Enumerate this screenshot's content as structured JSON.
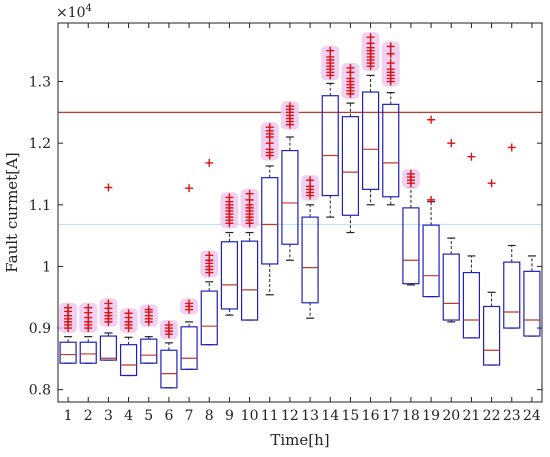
{
  "chart_data": {
    "type": "box",
    "title": "",
    "xlabel": "Time[h]",
    "ylabel": "Fault curmet[A]",
    "y_exponent_label": "×10",
    "y_exponent_power": "4",
    "xlim": [
      0.5,
      24.5
    ],
    "ylim": [
      0.78,
      1.395
    ],
    "yticks": [
      0.8,
      0.9,
      1.0,
      1.1,
      1.2,
      1.3
    ],
    "ytick_labels": [
      "0.8",
      "0.9",
      "1",
      "1.1",
      "1.2",
      "1.3"
    ],
    "categories": [
      "1",
      "2",
      "3",
      "4",
      "5",
      "6",
      "7",
      "8",
      "9",
      "10",
      "11",
      "12",
      "13",
      "14",
      "15",
      "16",
      "17",
      "18",
      "19",
      "20",
      "21",
      "22",
      "23",
      "24"
    ],
    "reference_lines": [
      {
        "y": 1.25,
        "color": "#c0392b"
      },
      {
        "y": 1.068,
        "color": "#bfe3ef"
      }
    ],
    "colors": {
      "box": "#1f1fbf",
      "median": "#c0392b",
      "whisker": "#222222",
      "outlier": "#e01010",
      "glow": "#f0c8ee"
    },
    "boxes": [
      {
        "whisker_low": 0.843,
        "q1": 0.843,
        "median": 0.857,
        "q3": 0.877,
        "whisker_high": 0.886,
        "outliers": [
          0.9,
          0.905,
          0.91,
          0.915,
          0.92,
          0.927,
          0.933
        ]
      },
      {
        "whisker_low": 0.843,
        "q1": 0.843,
        "median": 0.858,
        "q3": 0.877,
        "whisker_high": 0.886,
        "outliers": [
          0.9,
          0.905,
          0.91,
          0.917,
          0.925,
          0.933
        ]
      },
      {
        "whisker_low": 0.848,
        "q1": 0.848,
        "median": 0.851,
        "q3": 0.887,
        "whisker_high": 0.892,
        "outliers": [
          0.91,
          0.915,
          0.92,
          0.925,
          0.932,
          0.94,
          1.128
        ]
      },
      {
        "whisker_low": 0.823,
        "q1": 0.823,
        "median": 0.84,
        "q3": 0.873,
        "whisker_high": 0.885,
        "outliers": [
          0.9,
          0.905,
          0.91,
          0.917,
          0.924
        ]
      },
      {
        "whisker_low": 0.843,
        "q1": 0.843,
        "median": 0.856,
        "q3": 0.882,
        "whisker_high": 0.886,
        "outliers": [
          0.91,
          0.915,
          0.92,
          0.926,
          0.93
        ]
      },
      {
        "whisker_low": 0.803,
        "q1": 0.803,
        "median": 0.826,
        "q3": 0.864,
        "whisker_high": 0.876,
        "outliers": [
          0.89,
          0.895,
          0.9,
          0.905
        ]
      },
      {
        "whisker_low": 0.833,
        "q1": 0.833,
        "median": 0.851,
        "q3": 0.902,
        "whisker_high": 0.91,
        "outliers": [
          0.93,
          0.935,
          0.94,
          1.127
        ]
      },
      {
        "whisker_low": 0.873,
        "q1": 0.873,
        "median": 0.903,
        "q3": 0.96,
        "whisker_high": 0.975,
        "outliers": [
          0.99,
          0.995,
          1.0,
          1.005,
          1.01,
          1.018,
          1.168
        ]
      },
      {
        "whisker_low": 0.921,
        "q1": 0.931,
        "median": 0.97,
        "q3": 1.04,
        "whisker_high": 1.055,
        "outliers": [
          1.07,
          1.075,
          1.08,
          1.085,
          1.09,
          1.095,
          1.1,
          1.105,
          1.112
        ]
      },
      {
        "whisker_low": 0.913,
        "q1": 0.913,
        "median": 0.962,
        "q3": 1.041,
        "whisker_high": 1.055,
        "outliers": [
          1.07,
          1.075,
          1.08,
          1.085,
          1.09,
          1.095,
          1.1,
          1.108,
          1.118
        ]
      },
      {
        "whisker_low": 0.954,
        "q1": 1.004,
        "median": 1.068,
        "q3": 1.144,
        "whisker_high": 1.163,
        "outliers": [
          1.18,
          1.185,
          1.19,
          1.2,
          1.21,
          1.215,
          1.22,
          1.226
        ]
      },
      {
        "whisker_low": 1.01,
        "q1": 1.036,
        "median": 1.103,
        "q3": 1.188,
        "whisker_high": 1.21,
        "outliers": [
          1.23,
          1.235,
          1.24,
          1.245,
          1.25,
          1.255,
          1.26
        ]
      },
      {
        "whisker_low": 0.916,
        "q1": 0.941,
        "median": 0.998,
        "q3": 1.08,
        "whisker_high": 1.1,
        "outliers": [
          1.115,
          1.12,
          1.125,
          1.13,
          1.14
        ]
      },
      {
        "whisker_low": 1.08,
        "q1": 1.115,
        "median": 1.18,
        "q3": 1.277,
        "whisker_high": 1.297,
        "outliers": [
          1.31,
          1.315,
          1.32,
          1.325,
          1.33,
          1.335,
          1.34,
          1.35
        ]
      },
      {
        "whisker_low": 1.055,
        "q1": 1.083,
        "median": 1.153,
        "q3": 1.243,
        "whisker_high": 1.265,
        "outliers": [
          1.28,
          1.285,
          1.29,
          1.295,
          1.3,
          1.305,
          1.315,
          1.322
        ]
      },
      {
        "whisker_low": 1.1,
        "q1": 1.125,
        "median": 1.19,
        "q3": 1.283,
        "whisker_high": 1.31,
        "outliers": [
          1.325,
          1.33,
          1.335,
          1.34,
          1.345,
          1.35,
          1.355,
          1.362,
          1.372
        ]
      },
      {
        "whisker_low": 1.1,
        "q1": 1.113,
        "median": 1.168,
        "q3": 1.263,
        "whisker_high": 1.282,
        "outliers": [
          1.3,
          1.305,
          1.31,
          1.315,
          1.32,
          1.33,
          1.345,
          1.357
        ]
      },
      {
        "whisker_low": 0.97,
        "q1": 0.972,
        "median": 1.01,
        "q3": 1.095,
        "whisker_high": 1.128,
        "outliers": [
          1.135,
          1.14,
          1.145,
          1.15
        ]
      },
      {
        "whisker_low": 0.951,
        "q1": 0.951,
        "median": 0.985,
        "q3": 1.067,
        "whisker_high": 1.105,
        "outliers": [
          1.108,
          1.238
        ]
      },
      {
        "whisker_low": 0.91,
        "q1": 0.913,
        "median": 0.94,
        "q3": 1.02,
        "whisker_high": 1.046,
        "outliers": [
          1.2
        ]
      },
      {
        "whisker_low": 0.884,
        "q1": 0.884,
        "median": 0.913,
        "q3": 0.99,
        "whisker_high": 1.017,
        "outliers": [
          1.178
        ]
      },
      {
        "whisker_low": 0.84,
        "q1": 0.84,
        "median": 0.864,
        "q3": 0.935,
        "whisker_high": 0.958,
        "outliers": [
          1.135
        ]
      },
      {
        "whisker_low": 0.9,
        "q1": 0.9,
        "median": 0.926,
        "q3": 1.007,
        "whisker_high": 1.034,
        "outliers": [
          1.193
        ]
      },
      {
        "whisker_low": 0.887,
        "q1": 0.887,
        "median": 0.913,
        "q3": 0.992,
        "whisker_high": 1.017,
        "outliers": []
      }
    ]
  }
}
